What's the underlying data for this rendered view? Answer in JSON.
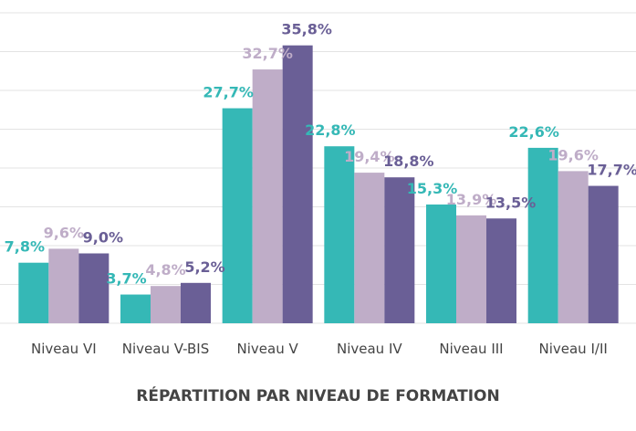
{
  "chart_data": {
    "type": "bar",
    "title": "RÉPARTITION PAR NIVEAU DE FORMATION",
    "categories": [
      "Niveau VI",
      "Niveau V-BIS",
      "Niveau V",
      "Niveau IV",
      "Niveau III",
      "Niveau I/II"
    ],
    "series": [
      {
        "color": "#35b8b6",
        "values": [
          7.8,
          3.7,
          27.7,
          22.8,
          15.3,
          22.6
        ],
        "value_labels": [
          "7,8%",
          "3,7%",
          "27,7%",
          "22,8%",
          "15,3%",
          "22,6%"
        ]
      },
      {
        "color": "#bfadc8",
        "values": [
          9.6,
          4.8,
          32.7,
          19.4,
          13.9,
          19.6
        ],
        "value_labels": [
          "9,6%",
          "4,8%",
          "32,7%",
          "19,4%",
          "13,9%",
          "19,6%"
        ]
      },
      {
        "color": "#6a5f96",
        "values": [
          9.0,
          5.2,
          35.8,
          18.8,
          13.5,
          17.7
        ],
        "value_labels": [
          "9,0%",
          "5,2%",
          "35,8%",
          "18,8%",
          "13,5%",
          "17,7%"
        ]
      }
    ],
    "ylim": [
      0,
      40
    ],
    "yticks": [
      0,
      5,
      10,
      15,
      20,
      25,
      30,
      35,
      40
    ],
    "grid": true
  }
}
